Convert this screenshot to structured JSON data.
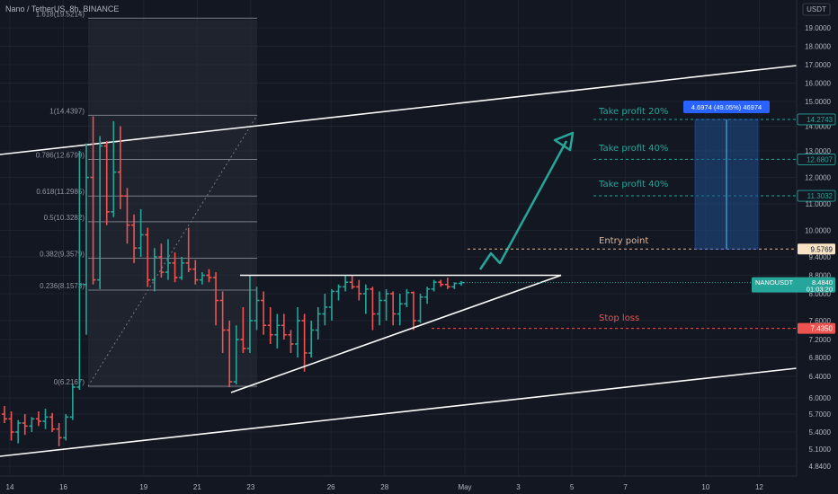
{
  "header": {
    "title": "Nano / TetherUS, 8h, BINANCE"
  },
  "colors": {
    "background": "#131722",
    "bull": "#26a69a",
    "bear": "#ef5350",
    "grid": "#1e222d",
    "trendline": "#ffffff",
    "fib_line": "#787b86",
    "arrow": "#26a69a",
    "position_box": "#1e4e8c",
    "badge_blue": "#2962ff",
    "entry_label_bg": "#f8e3c5",
    "sl_label_bg": "#ef5350"
  },
  "chart_data": {
    "type": "candlestick",
    "title": "Nano / TetherUS, 8h, BINANCE",
    "price_scale_label": "USDT",
    "y_ticks": [
      "19.0000",
      "18.0000",
      "17.0000",
      "16.0000",
      "15.0000",
      "14.0000",
      "13.0000",
      "12.0000",
      "11.0000",
      "10.0000",
      "9.4000",
      "8.8000",
      "8.0000",
      "7.6000",
      "7.2000",
      "6.8000",
      "6.4000",
      "6.0000",
      "5.7000",
      "5.4000",
      "5.1000",
      "4.8400"
    ],
    "x_ticks": [
      {
        "label": "14",
        "date": "2021-04-14"
      },
      {
        "label": "16",
        "date": "2021-04-16"
      },
      {
        "label": "19",
        "date": "2021-04-19"
      },
      {
        "label": "21",
        "date": "2021-04-21"
      },
      {
        "label": "23",
        "date": "2021-04-23"
      },
      {
        "label": "26",
        "date": "2021-04-26"
      },
      {
        "label": "28",
        "date": "2021-04-28"
      },
      {
        "label": "May",
        "date": "2021-05-01"
      },
      {
        "label": "3",
        "date": "2021-05-03"
      },
      {
        "label": "5",
        "date": "2021-05-05"
      },
      {
        "label": "7",
        "date": "2021-05-07"
      },
      {
        "label": "10",
        "date": "2021-05-10"
      },
      {
        "label": "12",
        "date": "2021-05-12"
      }
    ],
    "candles": [
      {
        "o": 5.7,
        "h": 5.85,
        "l": 5.55,
        "c": 5.62
      },
      {
        "o": 5.62,
        "h": 5.75,
        "l": 5.25,
        "c": 5.4
      },
      {
        "o": 5.4,
        "h": 5.6,
        "l": 5.2,
        "c": 5.55
      },
      {
        "o": 5.55,
        "h": 5.7,
        "l": 5.35,
        "c": 5.5
      },
      {
        "o": 5.5,
        "h": 5.65,
        "l": 5.4,
        "c": 5.62
      },
      {
        "o": 5.62,
        "h": 5.75,
        "l": 5.5,
        "c": 5.58
      },
      {
        "o": 5.58,
        "h": 5.8,
        "l": 5.45,
        "c": 5.65
      },
      {
        "o": 5.65,
        "h": 5.72,
        "l": 5.4,
        "c": 5.45
      },
      {
        "o": 5.45,
        "h": 5.55,
        "l": 5.15,
        "c": 5.3
      },
      {
        "o": 5.3,
        "h": 5.7,
        "l": 5.25,
        "c": 5.65
      },
      {
        "o": 5.65,
        "h": 6.25,
        "l": 5.6,
        "c": 6.2
      },
      {
        "o": 6.2,
        "h": 13.0,
        "l": 6.15,
        "c": 8.4
      },
      {
        "o": 8.4,
        "h": 13.3,
        "l": 7.3,
        "c": 12.0
      },
      {
        "o": 12.0,
        "h": 14.4,
        "l": 8.4,
        "c": 8.6
      },
      {
        "o": 8.6,
        "h": 13.6,
        "l": 8.2,
        "c": 13.2
      },
      {
        "o": 13.2,
        "h": 13.4,
        "l": 10.2,
        "c": 10.7
      },
      {
        "o": 10.7,
        "h": 14.2,
        "l": 10.5,
        "c": 12.2
      },
      {
        "o": 12.2,
        "h": 14.0,
        "l": 10.8,
        "c": 11.3
      },
      {
        "o": 11.3,
        "h": 11.6,
        "l": 9.7,
        "c": 10.2
      },
      {
        "o": 10.2,
        "h": 10.6,
        "l": 9.2,
        "c": 9.6
      },
      {
        "o": 9.6,
        "h": 10.8,
        "l": 9.4,
        "c": 9.9
      },
      {
        "o": 9.9,
        "h": 10.1,
        "l": 8.3,
        "c": 8.6
      },
      {
        "o": 8.6,
        "h": 9.6,
        "l": 8.1,
        "c": 9.4
      },
      {
        "o": 9.4,
        "h": 9.7,
        "l": 8.7,
        "c": 8.9
      },
      {
        "o": 8.9,
        "h": 9.8,
        "l": 8.6,
        "c": 9.2
      },
      {
        "o": 9.2,
        "h": 9.5,
        "l": 8.5,
        "c": 8.7
      },
      {
        "o": 8.7,
        "h": 9.4,
        "l": 8.6,
        "c": 9.2
      },
      {
        "o": 9.2,
        "h": 10.1,
        "l": 8.9,
        "c": 9.0
      },
      {
        "o": 9.0,
        "h": 9.3,
        "l": 8.4,
        "c": 8.6
      },
      {
        "o": 8.6,
        "h": 8.9,
        "l": 8.4,
        "c": 8.8
      },
      {
        "o": 8.8,
        "h": 9.0,
        "l": 8.5,
        "c": 8.7
      },
      {
        "o": 8.7,
        "h": 8.9,
        "l": 7.5,
        "c": 7.9
      },
      {
        "o": 7.9,
        "h": 8.1,
        "l": 6.9,
        "c": 7.4
      },
      {
        "o": 7.4,
        "h": 7.6,
        "l": 6.2,
        "c": 6.3
      },
      {
        "o": 6.3,
        "h": 7.5,
        "l": 6.25,
        "c": 7.2
      },
      {
        "o": 7.2,
        "h": 7.8,
        "l": 6.9,
        "c": 7.0
      },
      {
        "o": 7.0,
        "h": 8.8,
        "l": 6.9,
        "c": 7.6
      },
      {
        "o": 7.6,
        "h": 8.3,
        "l": 7.4,
        "c": 7.9
      },
      {
        "o": 7.9,
        "h": 8.1,
        "l": 7.3,
        "c": 7.5
      },
      {
        "o": 7.5,
        "h": 7.8,
        "l": 7.1,
        "c": 7.3
      },
      {
        "o": 7.3,
        "h": 7.7,
        "l": 7.0,
        "c": 7.5
      },
      {
        "o": 7.5,
        "h": 7.7,
        "l": 7.2,
        "c": 7.3
      },
      {
        "o": 7.3,
        "h": 7.4,
        "l": 6.9,
        "c": 7.1
      },
      {
        "o": 7.1,
        "h": 7.8,
        "l": 6.8,
        "c": 7.6
      },
      {
        "o": 7.6,
        "h": 7.7,
        "l": 6.5,
        "c": 6.9
      },
      {
        "o": 6.9,
        "h": 7.6,
        "l": 6.8,
        "c": 7.4
      },
      {
        "o": 7.4,
        "h": 7.8,
        "l": 7.2,
        "c": 7.7
      },
      {
        "o": 7.7,
        "h": 8.0,
        "l": 7.5,
        "c": 7.8
      },
      {
        "o": 7.8,
        "h": 8.2,
        "l": 7.6,
        "c": 8.1
      },
      {
        "o": 8.1,
        "h": 8.4,
        "l": 7.9,
        "c": 8.3
      },
      {
        "o": 8.3,
        "h": 8.8,
        "l": 8.1,
        "c": 8.5
      },
      {
        "o": 8.5,
        "h": 8.8,
        "l": 8.2,
        "c": 8.3
      },
      {
        "o": 8.3,
        "h": 8.6,
        "l": 7.9,
        "c": 8.0
      },
      {
        "o": 8.0,
        "h": 8.4,
        "l": 7.7,
        "c": 8.2
      },
      {
        "o": 8.2,
        "h": 8.3,
        "l": 7.4,
        "c": 7.7
      },
      {
        "o": 7.7,
        "h": 8.1,
        "l": 7.5,
        "c": 7.9
      },
      {
        "o": 7.9,
        "h": 8.2,
        "l": 7.6,
        "c": 8.0
      },
      {
        "o": 8.0,
        "h": 8.1,
        "l": 7.5,
        "c": 7.7
      },
      {
        "o": 7.7,
        "h": 8.0,
        "l": 7.5,
        "c": 7.85
      },
      {
        "o": 7.85,
        "h": 8.2,
        "l": 7.8,
        "c": 8.05
      },
      {
        "o": 8.05,
        "h": 8.1,
        "l": 7.4,
        "c": 7.6
      },
      {
        "o": 7.6,
        "h": 8.0,
        "l": 7.55,
        "c": 7.95
      },
      {
        "o": 7.95,
        "h": 8.3,
        "l": 7.85,
        "c": 8.2
      },
      {
        "o": 8.2,
        "h": 8.6,
        "l": 8.1,
        "c": 8.5
      },
      {
        "o": 8.5,
        "h": 8.6,
        "l": 8.3,
        "c": 8.4
      },
      {
        "o": 8.4,
        "h": 8.7,
        "l": 8.2,
        "c": 8.3
      },
      {
        "o": 8.3,
        "h": 8.5,
        "l": 8.2,
        "c": 8.45
      },
      {
        "o": 8.45,
        "h": 8.55,
        "l": 8.35,
        "c": 8.48
      }
    ],
    "fib_levels": [
      {
        "label": "1.618(19.5214)",
        "value": 19.5214
      },
      {
        "label": "1(14.4397)",
        "value": 14.4397
      },
      {
        "label": "0.786(12.6799)",
        "value": 12.6799
      },
      {
        "label": "0.618(11.2985)",
        "value": 11.2985
      },
      {
        "label": "0.5(10.3282)",
        "value": 10.3282
      },
      {
        "label": "0.382(9.3579)",
        "value": 9.3579
      },
      {
        "label": "0.236(8.1573)",
        "value": 8.1573
      },
      {
        "label": "0(6.2167)",
        "value": 6.2167
      }
    ],
    "annotations": {
      "take_profit_20": "Take profit 20%",
      "take_profit_40a": "Take profit 40%",
      "take_profit_40b": "Take profit 40%",
      "entry_point": "Entry point",
      "stop_loss": "Stop loss",
      "position_info": "4.6974 (49.05%) 46974"
    },
    "price_labels": {
      "tp20": {
        "text": "14.2743",
        "value": 14.2743
      },
      "tp40a": {
        "text": "12.6807",
        "value": 12.6807
      },
      "tp40b": {
        "text": "11.3032",
        "value": 11.3032
      },
      "entry": {
        "text": "9.5769",
        "value": 9.5769
      },
      "stop": {
        "text": "7.4350",
        "value": 7.435
      },
      "current": {
        "text": "8.4840",
        "value": 8.484,
        "symbol": "NANOUSDT",
        "countdown": "01:03:20"
      }
    },
    "triangle_resistance": 8.8
  }
}
